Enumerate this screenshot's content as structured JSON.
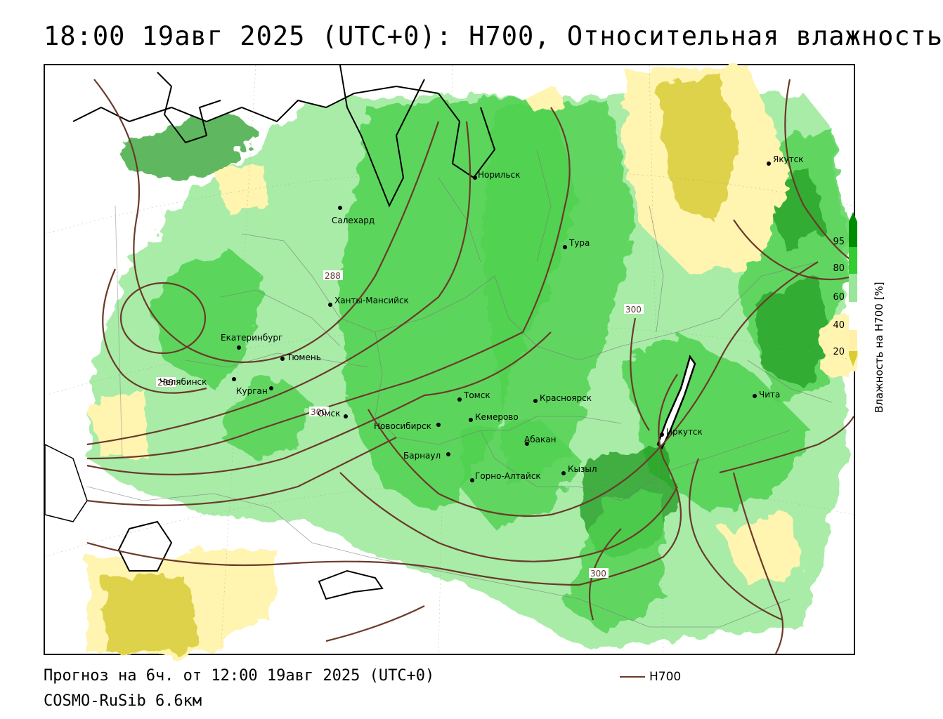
{
  "header": {
    "title": "18:00 19авг 2025 (UTC+0): H700, Относительная влажность"
  },
  "map": {
    "cities": [
      {
        "name": "Норильск"
      },
      {
        "name": "Якутск"
      },
      {
        "name": "Салехард"
      },
      {
        "name": "Тура"
      },
      {
        "name": "Ханты-Мансийск"
      },
      {
        "name": "Екатеринбург"
      },
      {
        "name": "Тюмень"
      },
      {
        "name": "Челябинск"
      },
      {
        "name": "Курган"
      },
      {
        "name": "Омск"
      },
      {
        "name": "Новосибирск"
      },
      {
        "name": "Томск"
      },
      {
        "name": "Кемерово"
      },
      {
        "name": "Красноярск"
      },
      {
        "name": "Абакан"
      },
      {
        "name": "Барнаул"
      },
      {
        "name": "Горно-Алтайск"
      },
      {
        "name": "Кызыл"
      },
      {
        "name": "Иркутск"
      },
      {
        "name": "Чита"
      }
    ],
    "isoline_labels": [
      "288",
      "288",
      "300",
      "300",
      "300"
    ]
  },
  "colorbar": {
    "ticks": [
      "95",
      "80",
      "60",
      "40",
      "20"
    ],
    "colors": [
      "#008c00",
      "#33cc33",
      "#99e699",
      "#ffffff",
      "#fff2a8",
      "#d9cc33"
    ],
    "axis_label": "Влажность на H700 [%]"
  },
  "footer": {
    "forecast": "Прогноз на 6ч. от 12:00 19авг 2025 (UTC+0)",
    "model": "COSMO-RuSib 6.6км",
    "series_label": "H700"
  },
  "colors": {
    "isoline": "#6b3a2a",
    "dark_green": "#1e9a1e",
    "mid_green": "#4fd14f",
    "light_green": "#a8eca8",
    "light_yellow": "#fff4b0",
    "dark_yellow": "#ddd24a"
  }
}
